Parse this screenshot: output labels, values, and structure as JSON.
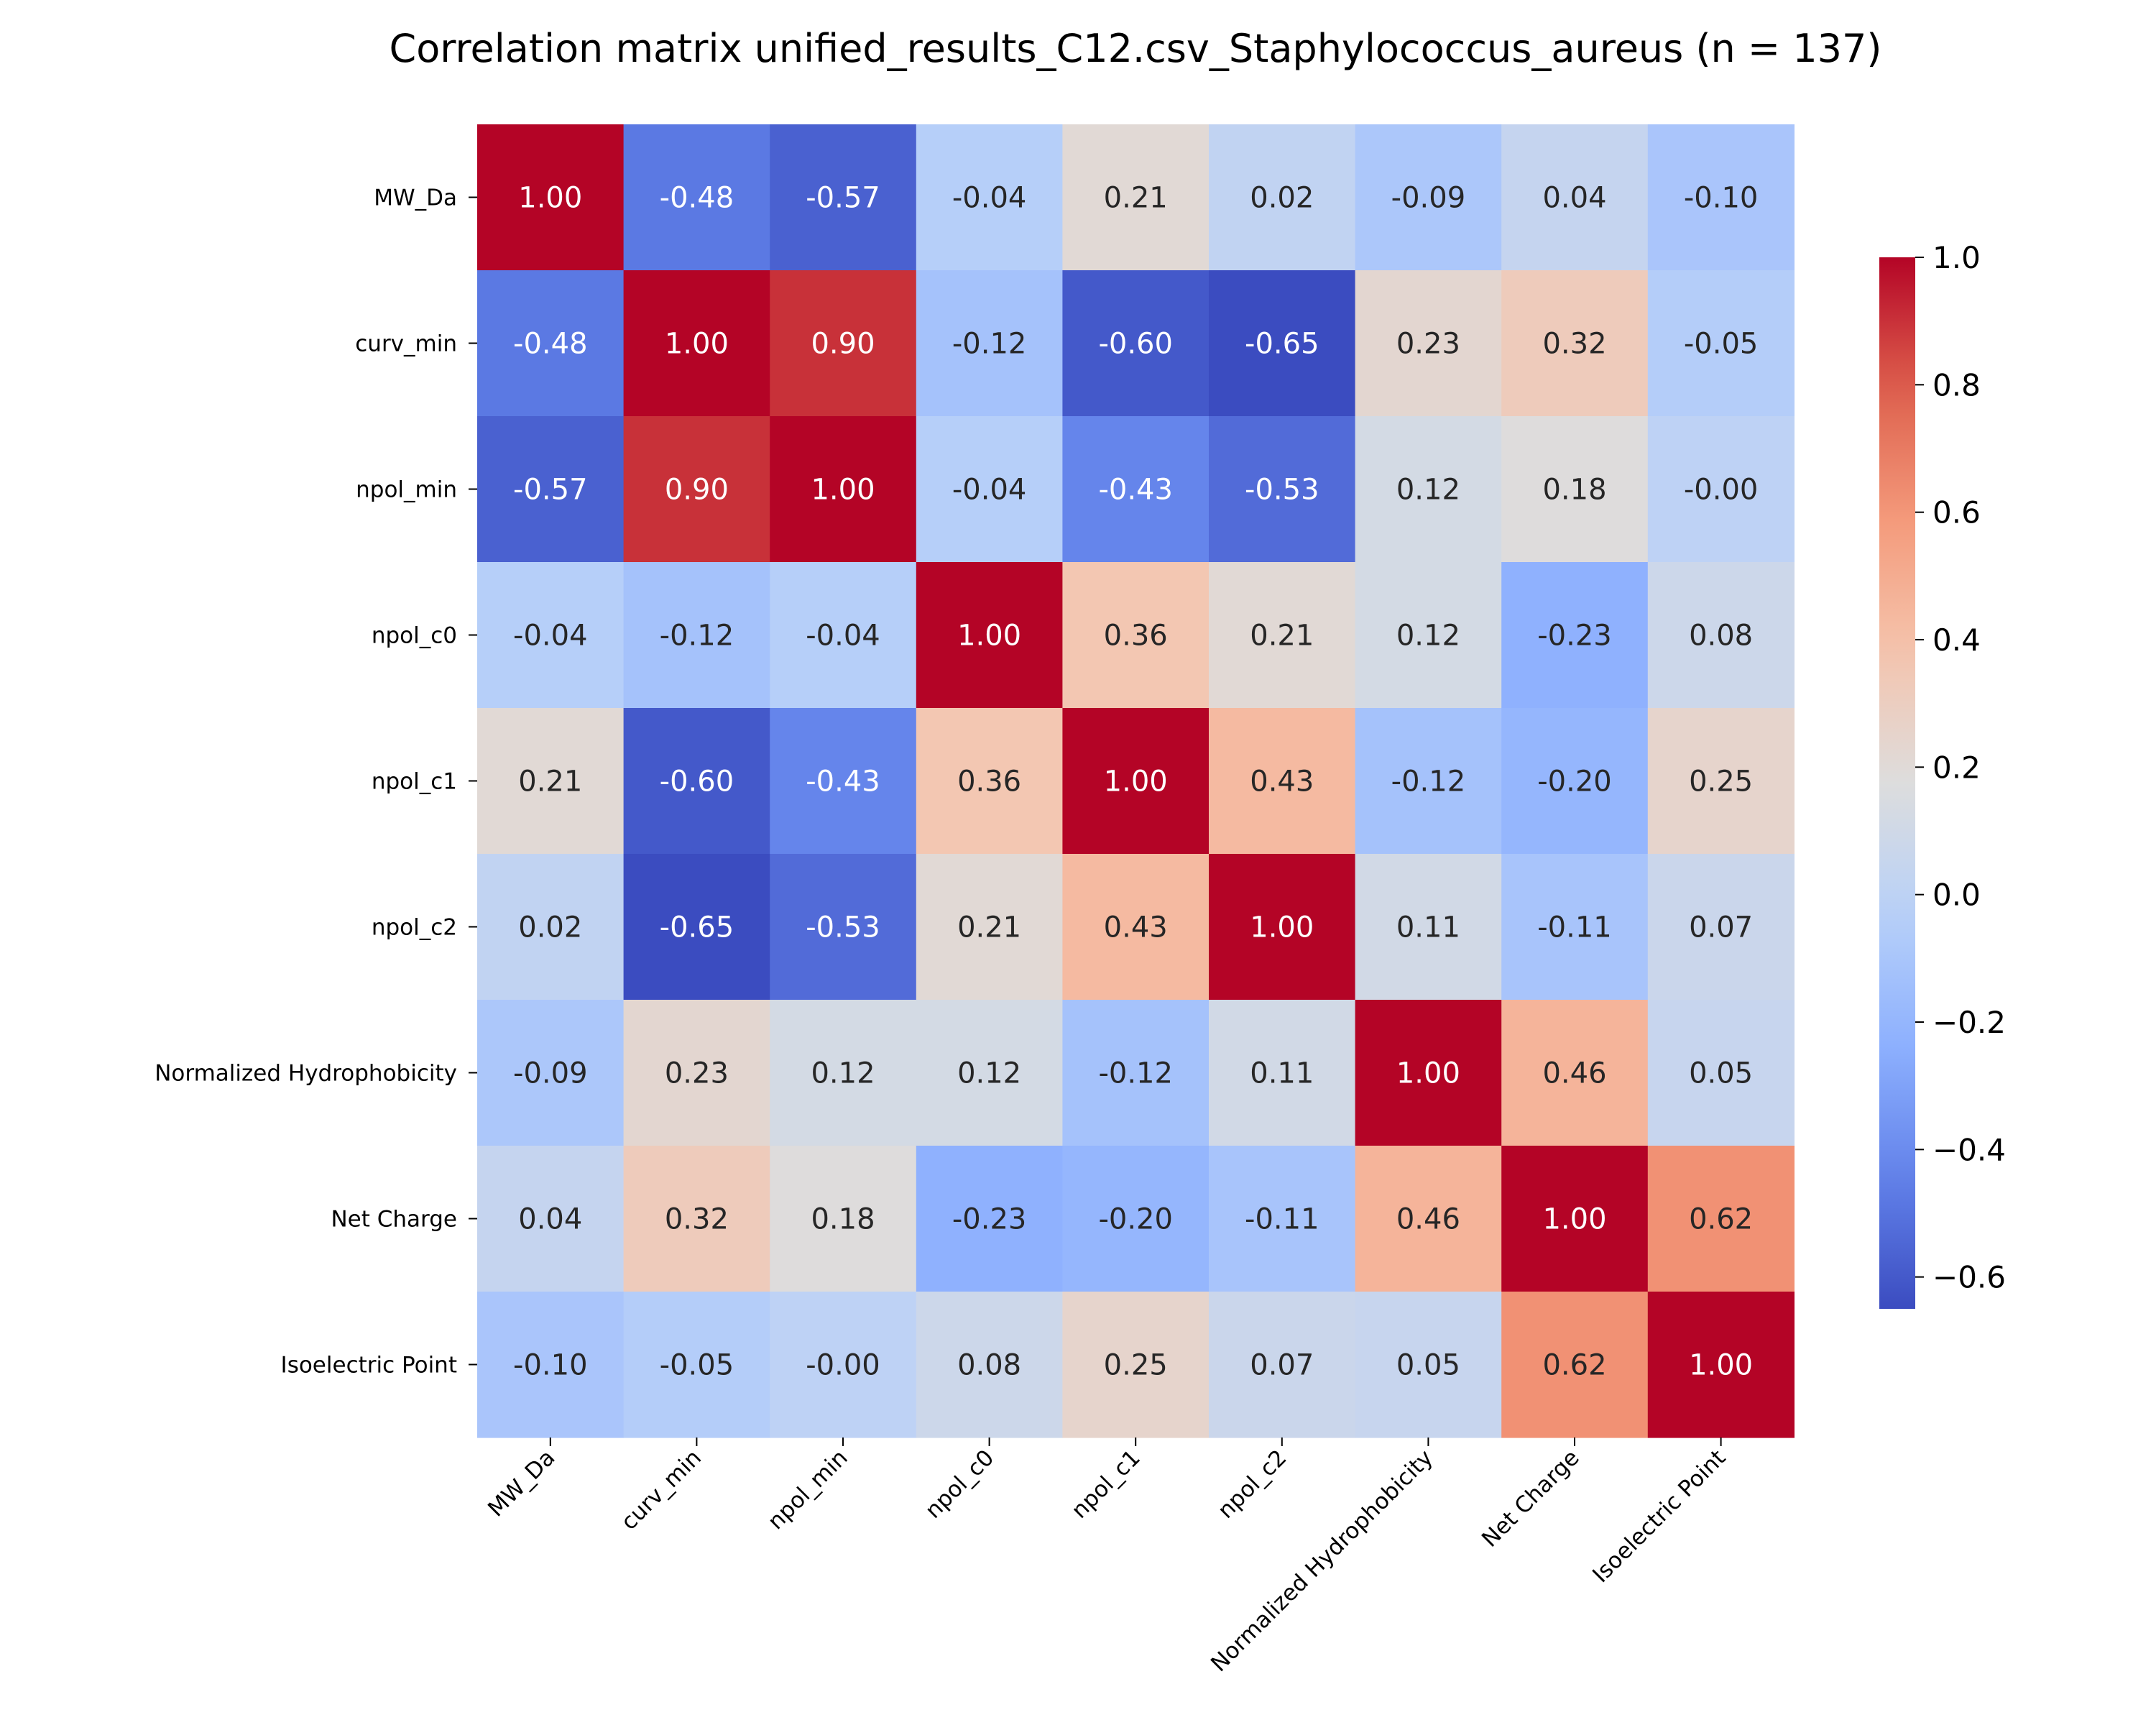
{
  "chart_data": {
    "type": "heatmap",
    "title": "Correlation matrix unified_results_C12.csv_Staphylococcus_aureus (n = 137)",
    "labels": [
      "MW_Da",
      "curv_min",
      "npol_min",
      "npol_c0",
      "npol_c1",
      "npol_c2",
      "Normalized Hydrophobicity",
      "Net Charge",
      "Isoelectric Point"
    ],
    "values": [
      [
        1.0,
        -0.48,
        -0.57,
        -0.04,
        0.21,
        0.02,
        -0.09,
        0.04,
        -0.1
      ],
      [
        -0.48,
        1.0,
        0.9,
        -0.12,
        -0.6,
        -0.65,
        0.23,
        0.32,
        -0.05
      ],
      [
        -0.57,
        0.9,
        1.0,
        -0.04,
        -0.43,
        -0.53,
        0.12,
        0.18,
        -0.0
      ],
      [
        -0.04,
        -0.12,
        -0.04,
        1.0,
        0.36,
        0.21,
        0.12,
        -0.23,
        0.08
      ],
      [
        0.21,
        -0.6,
        -0.43,
        0.36,
        1.0,
        0.43,
        -0.12,
        -0.2,
        0.25
      ],
      [
        0.02,
        -0.65,
        -0.53,
        0.21,
        0.43,
        1.0,
        0.11,
        -0.11,
        0.07
      ],
      [
        -0.09,
        0.23,
        0.12,
        0.12,
        -0.12,
        0.11,
        1.0,
        0.46,
        0.05
      ],
      [
        0.04,
        0.32,
        0.18,
        -0.23,
        -0.2,
        -0.11,
        0.46,
        1.0,
        0.62
      ],
      [
        -0.1,
        -0.05,
        -0.0,
        0.08,
        0.25,
        0.07,
        0.05,
        0.62,
        1.0
      ]
    ],
    "colormap": "coolwarm",
    "vmin": -0.65,
    "vmax": 1.0,
    "colorbar_ticks": [
      1.0,
      0.8,
      0.6,
      0.4,
      0.2,
      0.0,
      -0.2,
      -0.4,
      -0.6
    ],
    "colorbar_labels": [
      "1.0",
      "0.8",
      "0.6",
      "0.4",
      "0.2",
      "0.0",
      "−0.2",
      "−0.4",
      "−0.6"
    ],
    "legend": "colorbar-right"
  }
}
